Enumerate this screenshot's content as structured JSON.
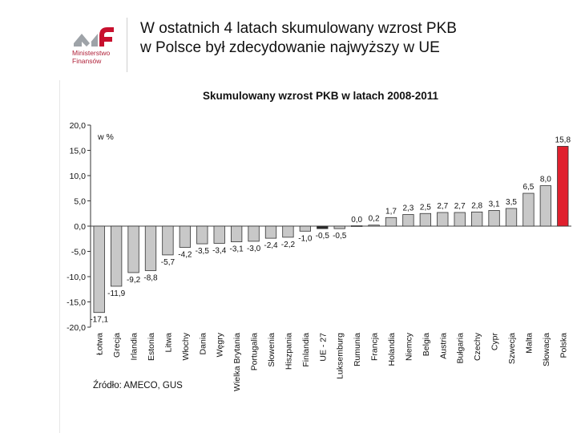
{
  "header": {
    "logo_line1": "Ministerstwo",
    "logo_line2": "Finansów",
    "title_line1": "W ostatnich 4 latach skumulowany wzrost PKB",
    "title_line2": "w Polsce był zdecydowanie najwyższy w UE"
  },
  "colors": {
    "bar_default": "#c8c8c8",
    "bar_highlight": "#e0202e",
    "bar_eu": "#2b2b2b",
    "brand": "#b0223a"
  },
  "chart_data": {
    "type": "bar",
    "title": "Skumulowany wzrost PKB w latach 2008-2011",
    "ylabel": "w %",
    "ylim": [
      -20,
      20
    ],
    "yticks": [
      "20,0",
      "15,0",
      "10,0",
      "5,0",
      "0,0",
      "-5,0",
      "-10,0",
      "-15,0",
      "-20,0"
    ],
    "categories": [
      "Łotwa",
      "Grecja",
      "Irlandia",
      "Estonia",
      "Litwa",
      "Włochy",
      "Dania",
      "Węgry",
      "Wielka Brytania",
      "Portugalia",
      "Słowenia",
      "Hiszpania",
      "Finlandia",
      "UE - 27",
      "Luksemburg",
      "Rumunia",
      "Francja",
      "Holandia",
      "Niemcy",
      "Belgia",
      "Austria",
      "Bułgaria",
      "Czechy",
      "Cypr",
      "Szwecja",
      "Malta",
      "Słowacja",
      "Polska"
    ],
    "values": [
      -17.1,
      -11.9,
      -9.2,
      -8.8,
      -5.7,
      -4.2,
      -3.5,
      -3.4,
      -3.1,
      -3.0,
      -2.4,
      -2.2,
      -1.0,
      -0.5,
      -0.5,
      0.0,
      0.2,
      1.7,
      2.3,
      2.5,
      2.7,
      2.7,
      2.8,
      3.1,
      3.5,
      6.5,
      8.0,
      15.8
    ],
    "value_labels": [
      "-17,1",
      "-11,9",
      "-9,2",
      "-8,8",
      "-5,7",
      "-4,2",
      "-3,5",
      "-3,4",
      "-3,1",
      "-3,0",
      "-2,4",
      "-2,2",
      "-1,0",
      "-0,5",
      "-0,5",
      "0,0",
      "0,2",
      "1,7",
      "2,3",
      "2,5",
      "2,7",
      "2,7",
      "2,8",
      "3,1",
      "3,5",
      "6,5",
      "8,0",
      "15,8"
    ],
    "source": "Źródło: AMECO, GUS"
  }
}
